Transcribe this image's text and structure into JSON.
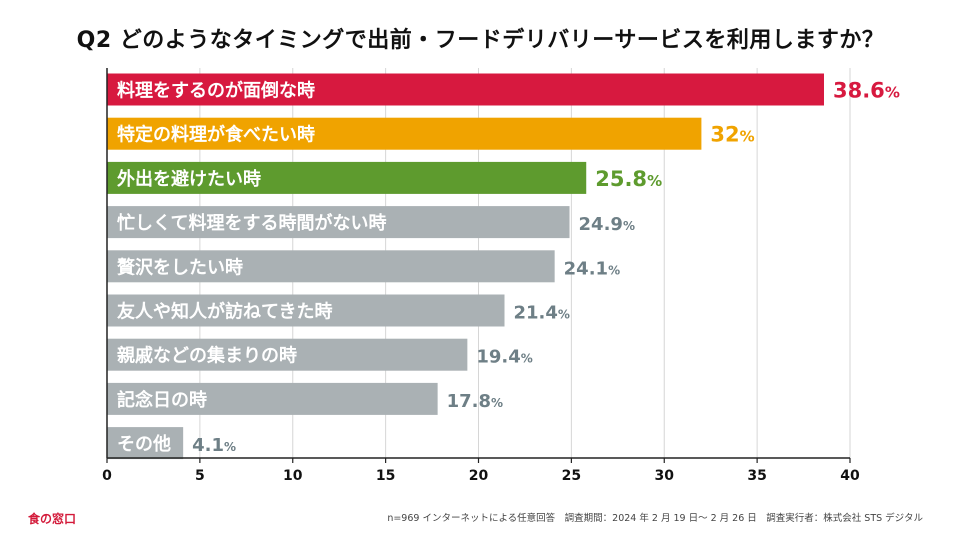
{
  "title": "Q2 どのようなタイミングで出前・フードデリバリーサービスを利用しますか？",
  "chart_data": {
    "type": "bar",
    "orientation": "horizontal",
    "title": "Q2 どのようなタイミングで出前・フードデリバリーサービスを利用しますか？",
    "categories": [
      "料理をするのが面倒な時",
      "特定の料理が食べたい時",
      "外出を避けたい時",
      "忙しくて料理をする時間がない時",
      "贅沢をしたい時",
      "友人や知人が訪ねてきた時",
      "親戚などの集まりの時",
      "記念日の時",
      "その他"
    ],
    "values": [
      38.6,
      32,
      25.8,
      24.9,
      24.1,
      21.4,
      19.4,
      17.8,
      4.1
    ],
    "value_labels": [
      "38.6",
      "32",
      "25.8",
      "24.9",
      "24.1",
      "21.4",
      "19.4",
      "17.8",
      "4.1"
    ],
    "unit": "%",
    "colors": [
      "#d7193f",
      "#f0a300",
      "#5e9b2e",
      "#aab1b4",
      "#aab1b4",
      "#aab1b4",
      "#aab1b4",
      "#aab1b4",
      "#aab1b4"
    ],
    "label_colors": [
      "#d7193f",
      "#f0a300",
      "#5e9b2e",
      "#6e7f86",
      "#6e7f86",
      "#6e7f86",
      "#6e7f86",
      "#6e7f86",
      "#6e7f86"
    ],
    "xlim": [
      0,
      40
    ],
    "xticks": [
      0,
      5,
      10,
      15,
      20,
      25,
      30,
      35,
      40
    ],
    "grid": true
  },
  "footer": {
    "brand": "食の窓口",
    "note": "n=969 インターネットによる任意回答　調査期間：2024 年 2 月 19 日〜 2 月 26 日　調査実行者：株式会社 STS デジタル"
  }
}
